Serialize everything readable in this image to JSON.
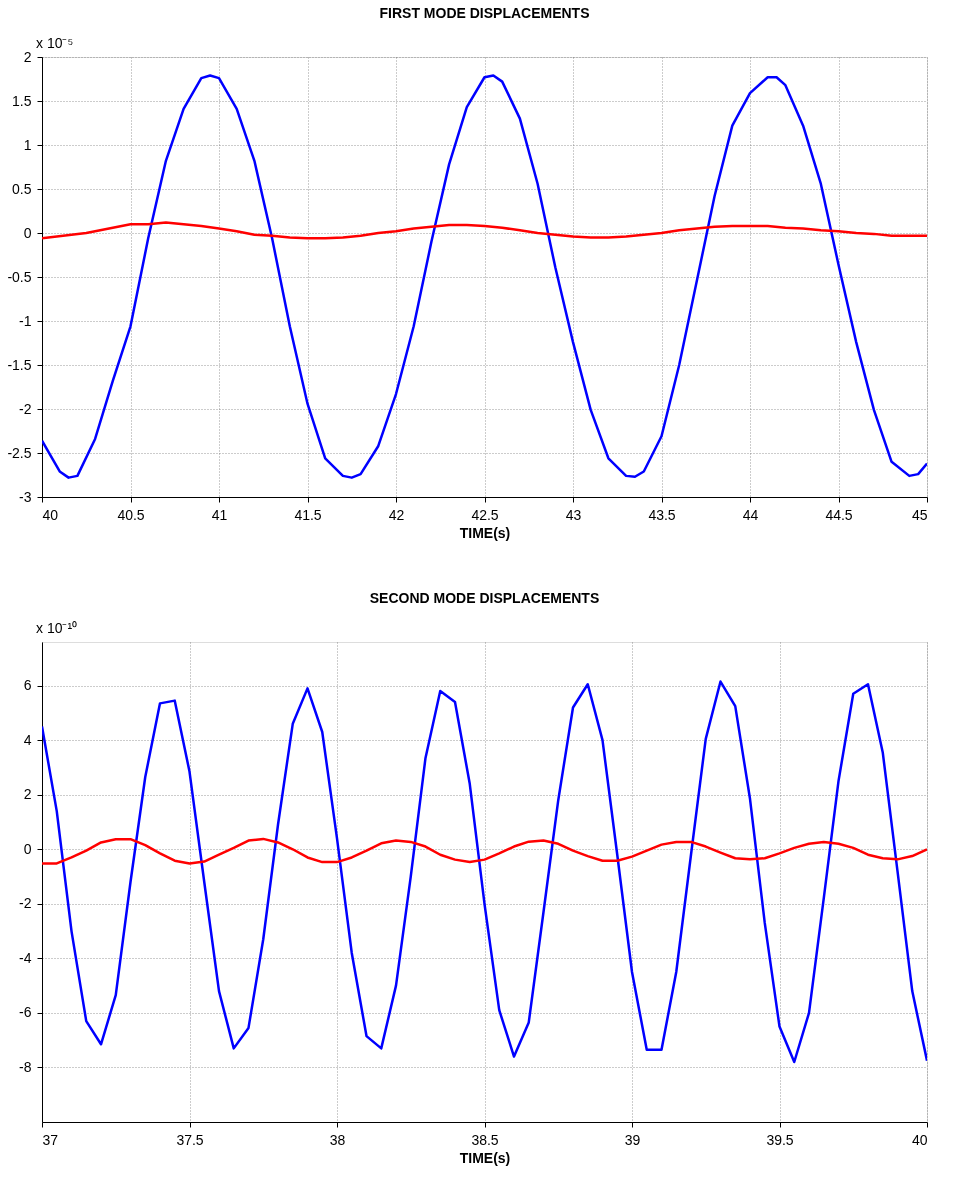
{
  "chart_data": [
    {
      "type": "line",
      "title": "FIRST MODE DISPLACEMENTS",
      "xlabel": "TIME(s)",
      "annotations": [
        "x 10⁻⁵"
      ],
      "xlim": [
        40,
        45
      ],
      "xticks": [
        40,
        40.5,
        41,
        41.5,
        42,
        42.5,
        43,
        43.5,
        44,
        44.5,
        45
      ],
      "ylim": [
        -3,
        2
      ],
      "yticks": [
        -3,
        -2.5,
        -2,
        -1.5,
        -1,
        -0.5,
        0,
        0.5,
        1,
        1.5,
        2
      ],
      "grid": true,
      "legend": false,
      "marker": "none",
      "line_style": "solid",
      "series": [
        {
          "color": "#0000ff",
          "x": [
            40.0,
            40.1,
            40.15,
            40.2,
            40.3,
            40.4,
            40.5,
            40.6,
            40.7,
            40.8,
            40.9,
            40.95,
            41.0,
            41.1,
            41.2,
            41.3,
            41.4,
            41.5,
            41.6,
            41.7,
            41.75,
            41.8,
            41.9,
            42.0,
            42.1,
            42.2,
            42.3,
            42.4,
            42.5,
            42.55,
            42.6,
            42.7,
            42.8,
            42.9,
            43.0,
            43.1,
            43.2,
            43.3,
            43.35,
            43.4,
            43.5,
            43.6,
            43.7,
            43.8,
            43.9,
            44.0,
            44.1,
            44.15,
            44.2,
            44.3,
            44.4,
            44.5,
            44.6,
            44.7,
            44.8,
            44.9,
            44.95,
            45.0
          ],
          "values": [
            -2.36,
            -2.71,
            -2.78,
            -2.76,
            -2.34,
            -1.68,
            -1.06,
            -0.06,
            0.82,
            1.41,
            1.76,
            1.79,
            1.76,
            1.41,
            0.82,
            -0.06,
            -1.06,
            -1.94,
            -2.56,
            -2.76,
            -2.78,
            -2.74,
            -2.42,
            -1.83,
            -1.06,
            -0.1,
            0.78,
            1.43,
            1.77,
            1.79,
            1.72,
            1.3,
            0.56,
            -0.39,
            -1.24,
            -2.01,
            -2.56,
            -2.76,
            -2.77,
            -2.71,
            -2.31,
            -1.5,
            -0.54,
            0.42,
            1.22,
            1.59,
            1.77,
            1.77,
            1.68,
            1.22,
            0.56,
            -0.36,
            -1.24,
            -2.01,
            -2.6,
            -2.76,
            -2.74,
            -2.62
          ]
        },
        {
          "color": "#ff0000",
          "x": [
            40.0,
            40.25,
            40.5,
            40.6,
            40.7,
            40.8,
            40.9,
            41.0,
            41.1,
            41.2,
            41.3,
            41.4,
            41.5,
            41.6,
            41.7,
            41.8,
            41.9,
            42.0,
            42.1,
            42.2,
            42.3,
            42.4,
            42.5,
            42.6,
            42.7,
            42.8,
            42.9,
            43.0,
            43.1,
            43.2,
            43.3,
            43.4,
            43.5,
            43.6,
            43.7,
            43.8,
            43.9,
            44.0,
            44.1,
            44.2,
            44.3,
            44.4,
            44.5,
            44.6,
            44.7,
            44.8,
            44.9,
            45.0
          ],
          "values": [
            -0.06,
            0.0,
            0.1,
            0.1,
            0.12,
            0.1,
            0.08,
            0.05,
            0.02,
            -0.02,
            -0.03,
            -0.05,
            -0.06,
            -0.06,
            -0.05,
            -0.03,
            0.0,
            0.02,
            0.05,
            0.07,
            0.09,
            0.09,
            0.08,
            0.06,
            0.03,
            0.0,
            -0.02,
            -0.04,
            -0.05,
            -0.05,
            -0.04,
            -0.02,
            0.0,
            0.03,
            0.05,
            0.07,
            0.08,
            0.08,
            0.08,
            0.06,
            0.05,
            0.03,
            0.02,
            0.0,
            -0.01,
            -0.03,
            -0.03,
            -0.03
          ]
        }
      ]
    },
    {
      "type": "line",
      "title": "SECOND MODE DISPLACEMENTS",
      "xlabel": "TIME(s)",
      "annotations": [
        "x 10⁻¹⁰"
      ],
      "xlim": [
        37,
        40
      ],
      "xticks": [
        37,
        37.5,
        38,
        38.5,
        39,
        39.5,
        40
      ],
      "ylim": [
        -10,
        7.6
      ],
      "yticks": [
        -8,
        -6,
        -4,
        -2,
        0,
        2,
        4,
        6
      ],
      "grid": true,
      "legend": false,
      "marker": "none",
      "line_style": "solid",
      "series": [
        {
          "color": "#0000ff",
          "x": [
            37.0,
            37.05,
            37.1,
            37.15,
            37.2,
            37.25,
            37.3,
            37.35,
            37.4,
            37.45,
            37.5,
            37.55,
            37.6,
            37.65,
            37.7,
            37.75,
            37.8,
            37.85,
            37.9,
            37.95,
            38.0,
            38.05,
            38.1,
            38.15,
            38.2,
            38.25,
            38.3,
            38.35,
            38.4,
            38.45,
            38.5,
            38.55,
            38.6,
            38.65,
            38.7,
            38.75,
            38.8,
            38.85,
            38.9,
            38.95,
            39.0,
            39.05,
            39.1,
            39.15,
            39.2,
            39.25,
            39.3,
            39.35,
            39.4,
            39.45,
            39.5,
            39.55,
            39.6,
            39.65,
            39.7,
            39.75,
            39.8,
            39.85,
            39.9,
            39.95,
            40.0
          ],
          "values": [
            4.5,
            1.4,
            -3.0,
            -6.3,
            -7.15,
            -5.35,
            -1.2,
            2.65,
            5.35,
            5.45,
            2.85,
            -1.2,
            -5.2,
            -7.3,
            -6.55,
            -3.3,
            0.9,
            4.6,
            5.9,
            4.3,
            0.4,
            -3.8,
            -6.85,
            -7.3,
            -5.0,
            -1.0,
            3.35,
            5.8,
            5.4,
            2.4,
            -2.0,
            -5.9,
            -7.6,
            -6.35,
            -2.3,
            1.8,
            5.2,
            6.05,
            4.0,
            -0.2,
            -4.5,
            -7.35,
            -7.35,
            -4.5,
            -0.2,
            4.05,
            6.15,
            5.25,
            1.85,
            -2.7,
            -6.5,
            -7.8,
            -6.0,
            -1.8,
            2.5,
            5.7,
            6.05,
            3.55,
            -0.8,
            -5.2,
            -7.75
          ]
        },
        {
          "color": "#ff0000",
          "x": [
            37.0,
            37.05,
            37.1,
            37.15,
            37.2,
            37.25,
            37.3,
            37.35,
            37.4,
            37.45,
            37.5,
            37.55,
            37.6,
            37.65,
            37.7,
            37.75,
            37.8,
            37.85,
            37.9,
            37.95,
            38.0,
            38.05,
            38.1,
            38.15,
            38.2,
            38.25,
            38.3,
            38.35,
            38.4,
            38.45,
            38.5,
            38.55,
            38.6,
            38.65,
            38.7,
            38.75,
            38.8,
            38.85,
            38.9,
            38.95,
            39.0,
            39.05,
            39.1,
            39.15,
            39.2,
            39.25,
            39.3,
            39.35,
            39.4,
            39.45,
            39.5,
            39.55,
            39.6,
            39.65,
            39.7,
            39.75,
            39.8,
            39.85,
            39.9,
            39.95,
            40.0
          ],
          "values": [
            -0.52,
            -0.52,
            -0.3,
            -0.05,
            0.25,
            0.37,
            0.37,
            0.15,
            -0.15,
            -0.42,
            -0.52,
            -0.45,
            -0.2,
            0.05,
            0.32,
            0.38,
            0.25,
            0.0,
            -0.3,
            -0.47,
            -0.47,
            -0.3,
            -0.05,
            0.22,
            0.32,
            0.27,
            0.1,
            -0.2,
            -0.38,
            -0.47,
            -0.38,
            -0.15,
            0.1,
            0.28,
            0.32,
            0.2,
            -0.05,
            -0.25,
            -0.42,
            -0.42,
            -0.27,
            -0.05,
            0.17,
            0.27,
            0.27,
            0.1,
            -0.12,
            -0.33,
            -0.37,
            -0.33,
            -0.15,
            0.05,
            0.2,
            0.27,
            0.2,
            0.05,
            -0.2,
            -0.33,
            -0.37,
            -0.25,
            0.0
          ]
        }
      ]
    }
  ]
}
